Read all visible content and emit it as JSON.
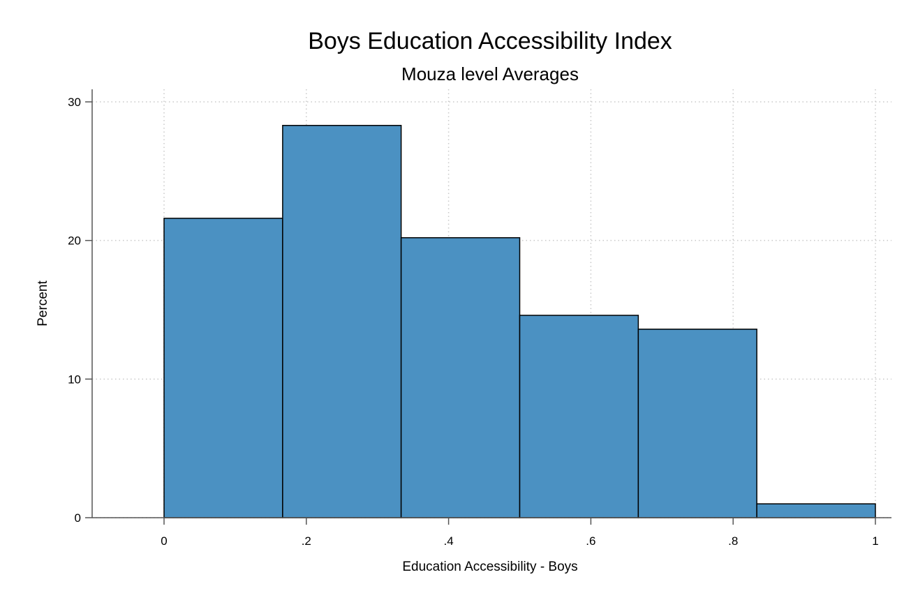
{
  "chart_data": {
    "type": "bar",
    "title": "Boys Education Accessibility Index",
    "subtitle": "Mouza level Averages",
    "xlabel": "Education Accessibility - Boys",
    "ylabel": "Percent",
    "xlim": [
      -0.1,
      1.0
    ],
    "ylim": [
      0,
      30
    ],
    "x_ticks": [
      0,
      0.2,
      0.4,
      0.6,
      0.8,
      1.0
    ],
    "x_tick_labels": [
      "0",
      ".2",
      ".4",
      ".6",
      ".8",
      "1"
    ],
    "y_ticks": [
      0,
      10,
      20,
      30
    ],
    "y_tick_labels": [
      "0",
      "10",
      "20",
      "30"
    ],
    "grid": true,
    "bar_color": "#4b91c2",
    "bins": [
      {
        "start": 0.0,
        "end": 0.1667,
        "value": 21.6
      },
      {
        "start": 0.1667,
        "end": 0.3333,
        "value": 28.3
      },
      {
        "start": 0.3333,
        "end": 0.5,
        "value": 20.2
      },
      {
        "start": 0.5,
        "end": 0.6667,
        "value": 14.6
      },
      {
        "start": 0.6667,
        "end": 0.8333,
        "value": 13.6
      },
      {
        "start": 0.8333,
        "end": 1.0,
        "value": 1.0
      }
    ]
  }
}
